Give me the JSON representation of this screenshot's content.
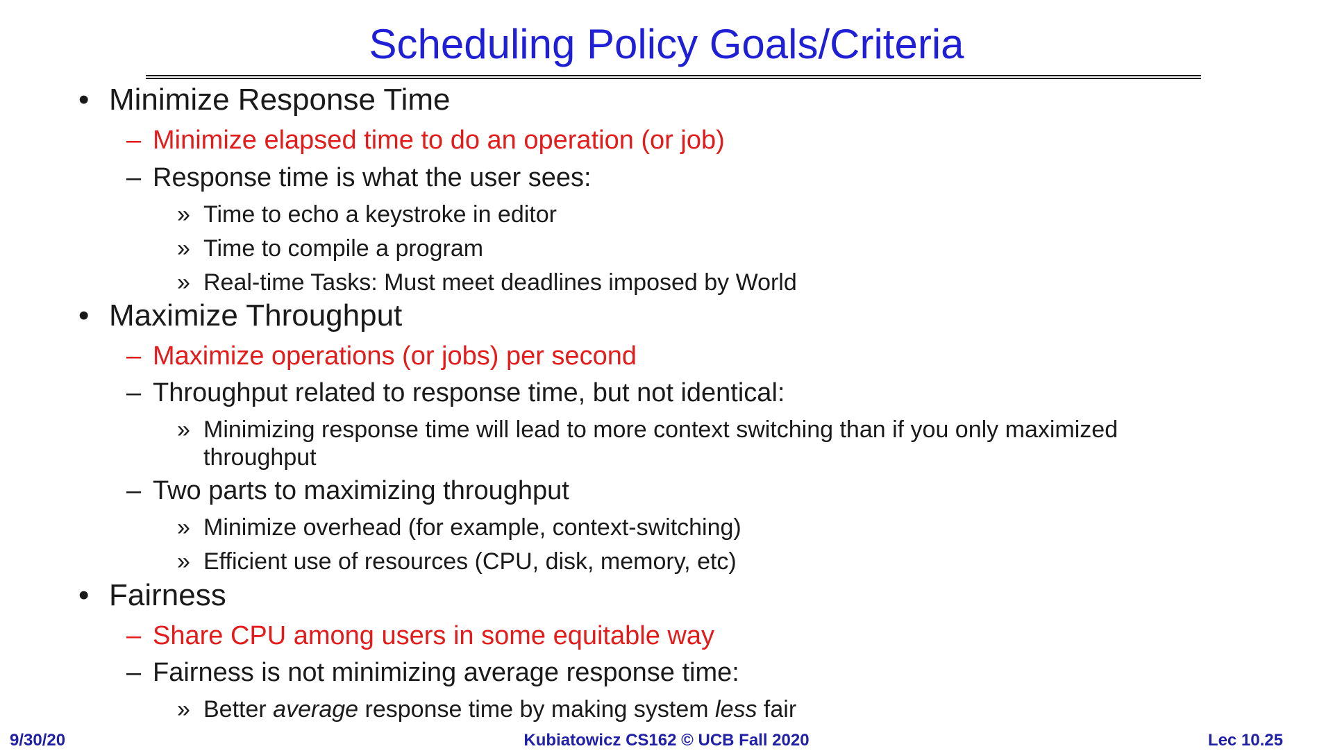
{
  "slide": {
    "title": "Scheduling Policy Goals/Criteria",
    "bullet_marker": "•",
    "dash_marker": "–",
    "sub_marker": "»"
  },
  "sections": [
    {
      "heading": "Minimize Response Time",
      "red_item": "Minimize elapsed time to do an operation (or job)",
      "item": "Response time is what the user sees:",
      "subitems": [
        "Time to echo a keystroke in editor",
        "Time to compile a program",
        "Real-time Tasks: Must meet deadlines imposed by World"
      ]
    },
    {
      "heading": "Maximize Throughput",
      "red_item": "Maximize operations (or jobs) per second",
      "item": "Throughput related to response time, but not identical:",
      "subitem_line1": "Minimizing response time will lead to more context switching than if you only maximized",
      "subitem_line2": "throughput",
      "item2": "Two parts to maximizing throughput",
      "subitems2": [
        "Minimize overhead (for example, context-switching)",
        "Efficient use of resources (CPU, disk, memory, etc)"
      ]
    },
    {
      "heading": "Fairness",
      "red_item": "Share CPU among users in some equitable way",
      "item": "Fairness is not minimizing average response time:",
      "subitem_parts": [
        "Better ",
        "average",
        " response time by making system ",
        "less",
        " fair"
      ]
    }
  ],
  "footer": {
    "date": "9/30/20",
    "course": "Kubiatowicz CS162 © UCB Fall 2020",
    "page": "Lec 10.25"
  }
}
